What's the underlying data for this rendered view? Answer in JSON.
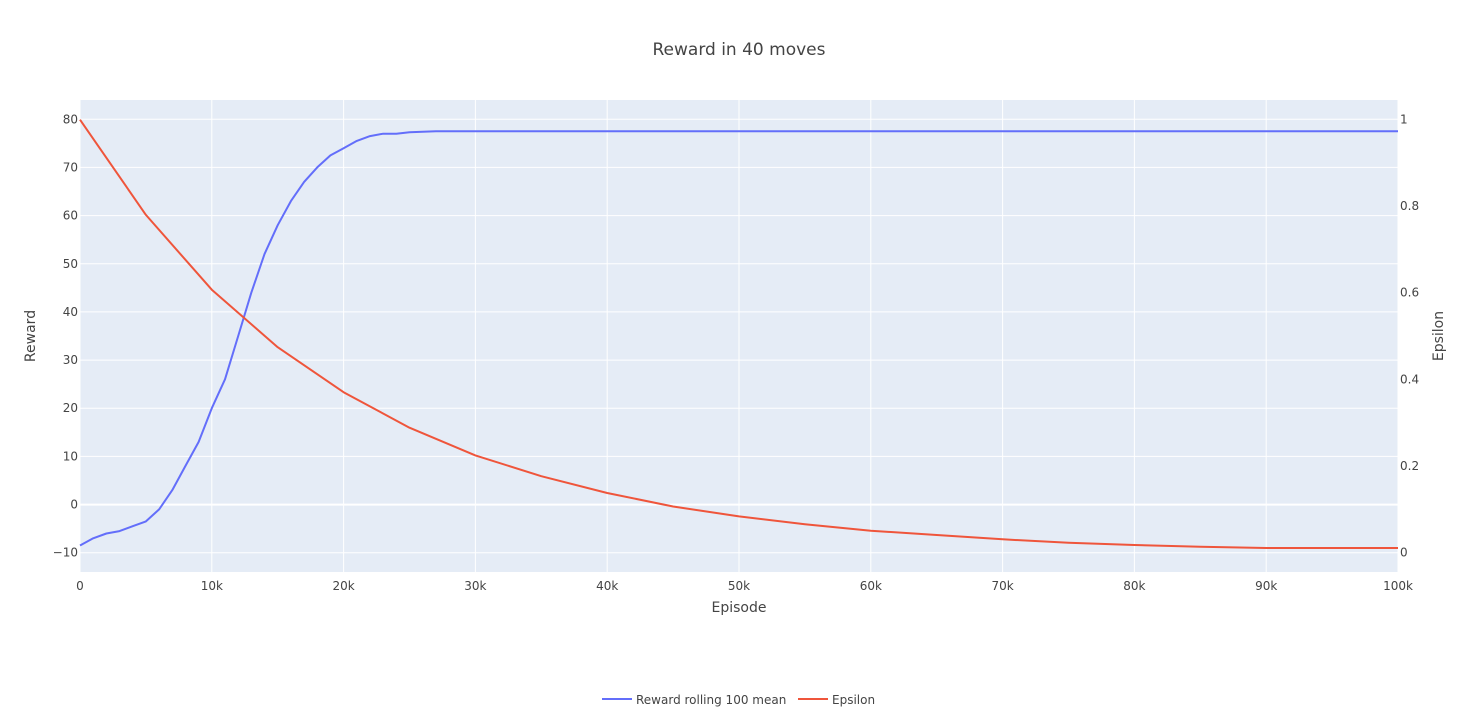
{
  "chart_data": {
    "type": "line",
    "title": "Reward in 40 moves",
    "xlabel": "Episode",
    "ylabel": "Reward",
    "y2label": "Epsilon",
    "xlim": [
      0,
      100000
    ],
    "ylim": [
      -14,
      84
    ],
    "y2lim": [
      -0.0455,
      1.0455
    ],
    "grid": true,
    "legend_position": "bottom-center",
    "x_ticks": [
      0,
      10000,
      20000,
      30000,
      40000,
      50000,
      60000,
      70000,
      80000,
      90000,
      100000
    ],
    "x_tick_labels": [
      "0",
      "10k",
      "20k",
      "30k",
      "40k",
      "50k",
      "60k",
      "70k",
      "80k",
      "90k",
      "100k"
    ],
    "y_ticks": [
      -10,
      0,
      10,
      20,
      30,
      40,
      50,
      60,
      70,
      80
    ],
    "y_tick_labels": [
      "−10",
      "0",
      "10",
      "20",
      "30",
      "40",
      "50",
      "60",
      "70",
      "80"
    ],
    "y2_ticks": [
      0,
      0.2,
      0.4,
      0.6,
      0.8,
      1
    ],
    "y2_tick_labels": [
      "0",
      "0.2",
      "0.4",
      "0.6",
      "0.8",
      "1"
    ],
    "series": [
      {
        "name": "Reward rolling 100 mean",
        "color": "#636efa",
        "axis": "y",
        "x": [
          0,
          1000,
          2000,
          3000,
          4000,
          5000,
          6000,
          7000,
          8000,
          9000,
          10000,
          11000,
          12000,
          13000,
          14000,
          15000,
          16000,
          17000,
          18000,
          19000,
          20000,
          21000,
          22000,
          23000,
          24000,
          25000,
          26000,
          27000,
          28000,
          30000,
          35000,
          40000,
          45000,
          50000,
          55000,
          60000,
          65000,
          70000,
          75000,
          80000,
          85000,
          90000,
          95000,
          100000
        ],
        "values": [
          -8.5,
          -7,
          -6,
          -5.5,
          -4.5,
          -3.5,
          -1,
          3,
          8,
          13,
          20,
          26,
          35,
          44,
          52,
          58,
          63,
          67,
          70,
          72.5,
          74,
          75.5,
          76.5,
          77,
          77,
          77.3,
          77.4,
          77.5,
          77.5,
          77.5,
          77.5,
          77.5,
          77.5,
          77.5,
          77.5,
          77.5,
          77.5,
          77.5,
          77.5,
          77.5,
          77.5,
          77.5,
          77.5,
          77.5
        ]
      },
      {
        "name": "Epsilon",
        "color": "#ef553b",
        "axis": "y2",
        "x": [
          0,
          5000,
          10000,
          15000,
          20000,
          25000,
          30000,
          35000,
          40000,
          45000,
          50000,
          55000,
          60000,
          65000,
          70000,
          75000,
          80000,
          85000,
          90000,
          95000,
          100000
        ],
        "values": [
          1.0,
          0.78,
          0.607,
          0.474,
          0.37,
          0.288,
          0.224,
          0.176,
          0.137,
          0.106,
          0.083,
          0.065,
          0.05,
          0.04,
          0.03,
          0.022,
          0.017,
          0.013,
          0.01,
          0.01,
          0.01
        ]
      }
    ]
  }
}
